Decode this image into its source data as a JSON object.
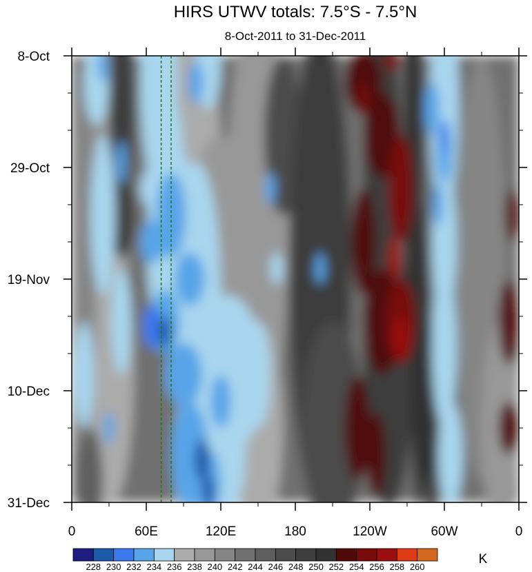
{
  "chart_data": {
    "type": "heatmap",
    "title": "HIRS UTWV totals: 7.5°S - 7.5°N",
    "subtitle": "8-Oct-2011 to 31-Dec-2011",
    "x_ticks": [
      {
        "label": "0",
        "lon": 0
      },
      {
        "label": "60E",
        "lon": 60
      },
      {
        "label": "120E",
        "lon": 120
      },
      {
        "label": "180",
        "lon": 180
      },
      {
        "label": "120W",
        "lon": 240
      },
      {
        "label": "60W",
        "lon": 300
      },
      {
        "label": "0",
        "lon": 360
      }
    ],
    "xlim": [
      0,
      360
    ],
    "y_ticks": [
      {
        "label": "8-Oct",
        "day": 0
      },
      {
        "label": "29-Oct",
        "day": 21
      },
      {
        "label": "19-Nov",
        "day": 42
      },
      {
        "label": "10-Dec",
        "day": 63
      },
      {
        "label": "31-Dec",
        "day": 84
      }
    ],
    "ylim": [
      0,
      84
    ],
    "reference_lines_lon": [
      72,
      80
    ],
    "colorbar": {
      "units": "K",
      "levels": [
        "228",
        "230",
        "232",
        "234",
        "236",
        "238",
        "240",
        "242",
        "244",
        "246",
        "248",
        "250",
        "252",
        "254",
        "256",
        "258",
        "260"
      ],
      "colors": [
        "#1c1d7e",
        "#1b5aa8",
        "#3c78ee",
        "#58a4e8",
        "#a9d6ee",
        "#ababab",
        "#989898",
        "#858585",
        "#707070",
        "#5e5e5e",
        "#4c4c4c",
        "#3e3e3e",
        "#313131",
        "#500a0a",
        "#780b0b",
        "#9c0f0f",
        "#e03c14",
        "#d2691e"
      ]
    }
  }
}
